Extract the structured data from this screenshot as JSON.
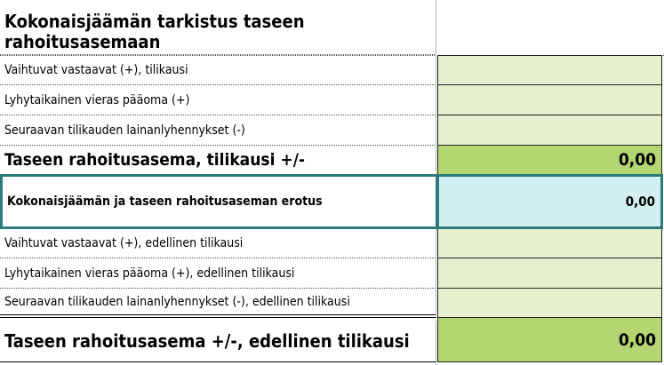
{
  "title": "Kokonaisjäämän tarkistus taseen rahoitusasemaan",
  "rows": [
    {
      "label": "Vaihtuvat vastaavat (+), tilikausi",
      "value": ""
    },
    {
      "label": "Lyhytaikainen vieras pääoma (+)",
      "value": ""
    },
    {
      "label": "Seuraavan tilikauden lainanlyhennykset (-)",
      "value": ""
    },
    {
      "label": "Taseen rahoitusasema, tilikausi +/-",
      "value": "0,00"
    },
    {
      "label": "Kokonaisjäämän ja taseen rahoitusaseman erotus",
      "value": "0,00"
    },
    {
      "label": "Vaihtuvat vastaavat (+), edellinen tilikausi",
      "value": ""
    },
    {
      "label": "Lyhytaikainen vieras pääoma (+), edellinen tilikausi",
      "value": ""
    },
    {
      "label": "Seuraavan tilikauden lainanlyhennykset (-), edellinen tilikausi",
      "value": ""
    },
    {
      "label": "Taseen rahoitusasema +/-, edellinen tilikausi",
      "value": "0,00"
    }
  ],
  "colors": {
    "input": "#e6f0cf",
    "total": "#b3d673",
    "highlight": "#d3eff1",
    "highlight_border": "#2e7b7b"
  }
}
